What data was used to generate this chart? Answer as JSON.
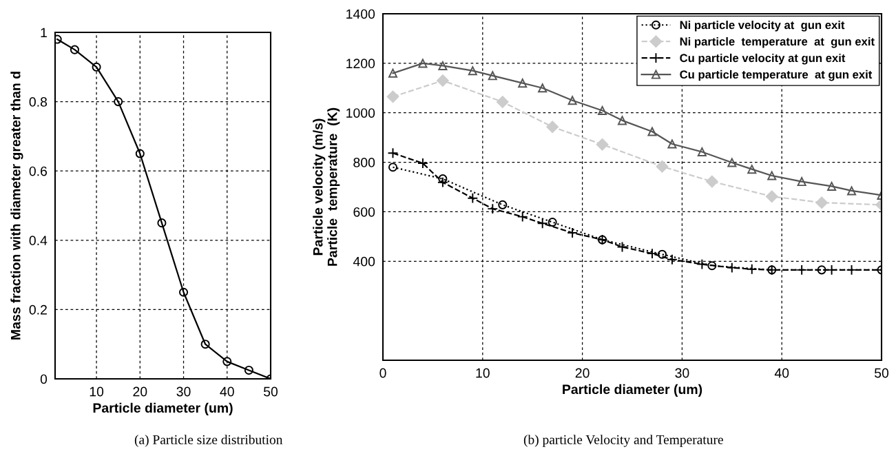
{
  "chart_data": [
    {
      "type": "line",
      "xlabel": "Particle diameter (um)",
      "ylabel": "Mass fraction with diameter greater than d",
      "xlim": [
        0.5,
        50
      ],
      "xticks": [
        10,
        20,
        30,
        40,
        50
      ],
      "ylim": [
        0,
        1
      ],
      "yticks": [
        0,
        0.2,
        0.4,
        0.6,
        0.8,
        1
      ],
      "grid": true,
      "legend": false,
      "marker": "circle",
      "line_style": "solid",
      "x": [
        1,
        5,
        10,
        15,
        20,
        25,
        30,
        35,
        40,
        45,
        50
      ],
      "series": [
        {
          "color": "#000000",
          "values": [
            0.98,
            0.95,
            0.9,
            0.8,
            0.65,
            0.45,
            0.25,
            0.1,
            0.05,
            0.025,
            0.0
          ]
        }
      ],
      "annotations": [
        "(a) Particle size distribution"
      ]
    },
    {
      "type": "line",
      "xlabel": "Particle diameter (um)",
      "ylabel": "Particle velocity (m/s)\nParticle  temperature  (K)",
      "xlim": [
        0,
        50
      ],
      "xticks": [
        0,
        10,
        20,
        30,
        40,
        50
      ],
      "ylim": [
        0,
        1400
      ],
      "yticks": [
        400,
        600,
        800,
        1000,
        1200,
        1400
      ],
      "grid": true,
      "legend": "top right",
      "series": [
        {
          "name": "Ni particle velocity at  gun exit",
          "color": "#000000",
          "marker": "circle",
          "line_style": "dotted",
          "x": [
            1,
            6,
            12,
            17,
            22,
            28,
            33,
            39,
            44,
            50
          ],
          "values": [
            780,
            733,
            628,
            558,
            487,
            428,
            382,
            365,
            365,
            365
          ]
        },
        {
          "name": "Ni particle  temperature  at  gun exit",
          "color": "#cccccc",
          "marker": "diamond",
          "line_style": "dashed",
          "x": [
            1,
            6,
            12,
            17,
            22,
            28,
            33,
            39,
            44,
            50
          ],
          "values": [
            1065,
            1130,
            1044,
            943,
            872,
            783,
            722,
            662,
            637,
            628
          ]
        },
        {
          "name": "Cu particle velocity at gun exit",
          "color": "#000000",
          "marker": "cross",
          "line_style": "dashed",
          "x": [
            1,
            4,
            6,
            9,
            11,
            14,
            16,
            19,
            22,
            24,
            27,
            29,
            32,
            35,
            37,
            39,
            42,
            45,
            47,
            50
          ],
          "values": [
            837,
            796,
            719,
            655,
            612,
            580,
            553,
            515,
            487,
            458,
            431,
            407,
            388,
            374,
            368,
            365,
            365,
            365,
            365,
            365
          ]
        },
        {
          "name": "Cu particle temperature  at gun exit",
          "color": "#555555",
          "marker": "triangle",
          "line_style": "solid",
          "x": [
            1,
            4,
            6,
            9,
            11,
            14,
            16,
            19,
            22,
            24,
            27,
            29,
            32,
            35,
            37,
            39,
            42,
            45,
            47,
            50
          ],
          "values": [
            1160,
            1200,
            1190,
            1170,
            1150,
            1120,
            1100,
            1050,
            1009,
            969,
            924,
            874,
            842,
            799,
            772,
            746,
            722,
            703,
            685,
            667
          ]
        }
      ],
      "annotations": [
        "(b) particle Velocity and Temperature"
      ]
    }
  ]
}
